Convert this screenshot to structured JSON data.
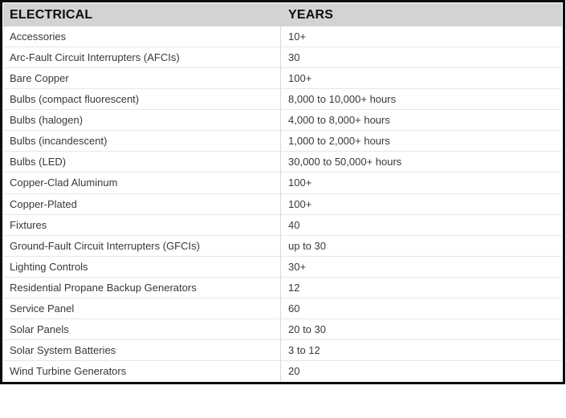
{
  "chart_data": {
    "type": "table",
    "columns": [
      "ELECTRICAL",
      "YEARS"
    ],
    "rows": [
      [
        "Accessories",
        "10+"
      ],
      [
        "Arc-Fault Circuit Interrupters (AFCIs)",
        "30"
      ],
      [
        "Bare Copper",
        "100+"
      ],
      [
        "Bulbs (compact fluorescent)",
        "8,000 to 10,000+ hours"
      ],
      [
        "Bulbs (halogen)",
        "4,000 to 8,000+ hours"
      ],
      [
        "Bulbs (incandescent)",
        "1,000 to 2,000+ hours"
      ],
      [
        "Bulbs (LED)",
        "30,000 to 50,000+ hours"
      ],
      [
        "Copper-Clad Aluminum",
        "100+"
      ],
      [
        "Copper-Plated",
        "100+"
      ],
      [
        "Fixtures",
        "40"
      ],
      [
        "Ground-Fault Circuit Interrupters (GFCIs)",
        "up to 30"
      ],
      [
        "Lighting Controls",
        "30+"
      ],
      [
        "Residential Propane Backup Generators",
        "12"
      ],
      [
        "Service Panel",
        "60"
      ],
      [
        "Solar Panels",
        "20 to 30"
      ],
      [
        "Solar System Batteries",
        "3 to 12"
      ],
      [
        "Wind Turbine Generators",
        "20"
      ]
    ],
    "legend": "none",
    "grid": "row and column dividers"
  },
  "colors": {
    "outer_border": "#0c0c0c",
    "header_bg": "#d3d3d3",
    "header_text": "#0e0e0e",
    "row_text": "#383838",
    "row_line": "#e7e7e7",
    "col_line": "#d9d9d9"
  }
}
